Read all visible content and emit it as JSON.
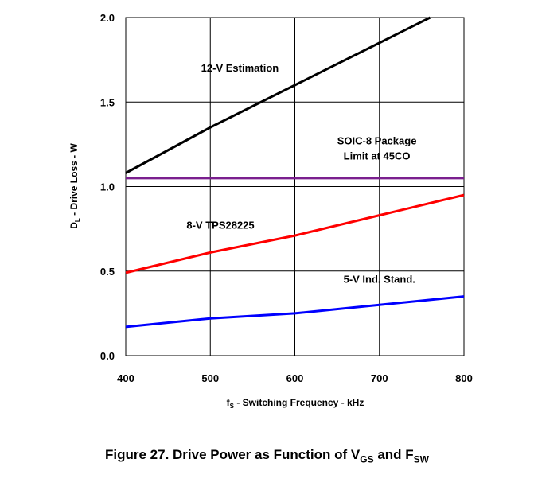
{
  "chart_data": {
    "type": "line",
    "xlabel": {
      "main": "f",
      "sub": "S",
      "rest": " - Switching Frequency - kHz"
    },
    "ylabel": {
      "main": "D",
      "sub": "L",
      "rest": " - Drive Loss - W"
    },
    "xlim": [
      400,
      800
    ],
    "ylim": [
      0.0,
      2.0
    ],
    "x_ticks": [
      400,
      500,
      600,
      700,
      800
    ],
    "y_ticks": [
      0.0,
      0.5,
      1.0,
      1.5,
      2.0
    ],
    "x_tick_labels": [
      "400",
      "500",
      "600",
      "700",
      "800"
    ],
    "y_tick_labels": [
      "0.0",
      "0.5",
      "1.0",
      "1.5",
      "2.0"
    ],
    "grid": true,
    "series": [
      {
        "name": "12-V Estimation",
        "color": "#000000",
        "x": [
          400,
          500,
          600,
          700,
          760
        ],
        "y": [
          1.08,
          1.35,
          1.6,
          1.85,
          2.0
        ]
      },
      {
        "name": "SOIC-8 Package Limit at 45CO",
        "color": "#7a1f8e",
        "x": [
          400,
          800
        ],
        "y": [
          1.05,
          1.05
        ]
      },
      {
        "name": "8-V TPS28225",
        "color": "#ff0000",
        "x": [
          400,
          500,
          600,
          700,
          800
        ],
        "y": [
          0.49,
          0.61,
          0.71,
          0.83,
          0.95
        ]
      },
      {
        "name": "5-V Ind. Stand.",
        "color": "#0000ff",
        "x": [
          400,
          500,
          600,
          700,
          800
        ],
        "y": [
          0.17,
          0.22,
          0.25,
          0.3,
          0.35
        ]
      }
    ],
    "annotations": [
      {
        "text": "12-V Estimation",
        "x": 535,
        "y": 1.68
      },
      {
        "text": "SOIC-8 Package",
        "x": 697,
        "y": 1.25
      },
      {
        "text": "Limit at 45CO",
        "x": 697,
        "y": 1.16
      },
      {
        "text": "8-V TPS28225",
        "x": 512,
        "y": 0.75
      },
      {
        "text": "5-V Ind. Stand.",
        "x": 700,
        "y": 0.43
      }
    ]
  },
  "caption": {
    "text": "Figure 27. Drive Power as Function of V",
    "sub1": "GS",
    "mid": " and F",
    "sub2": "SW"
  }
}
